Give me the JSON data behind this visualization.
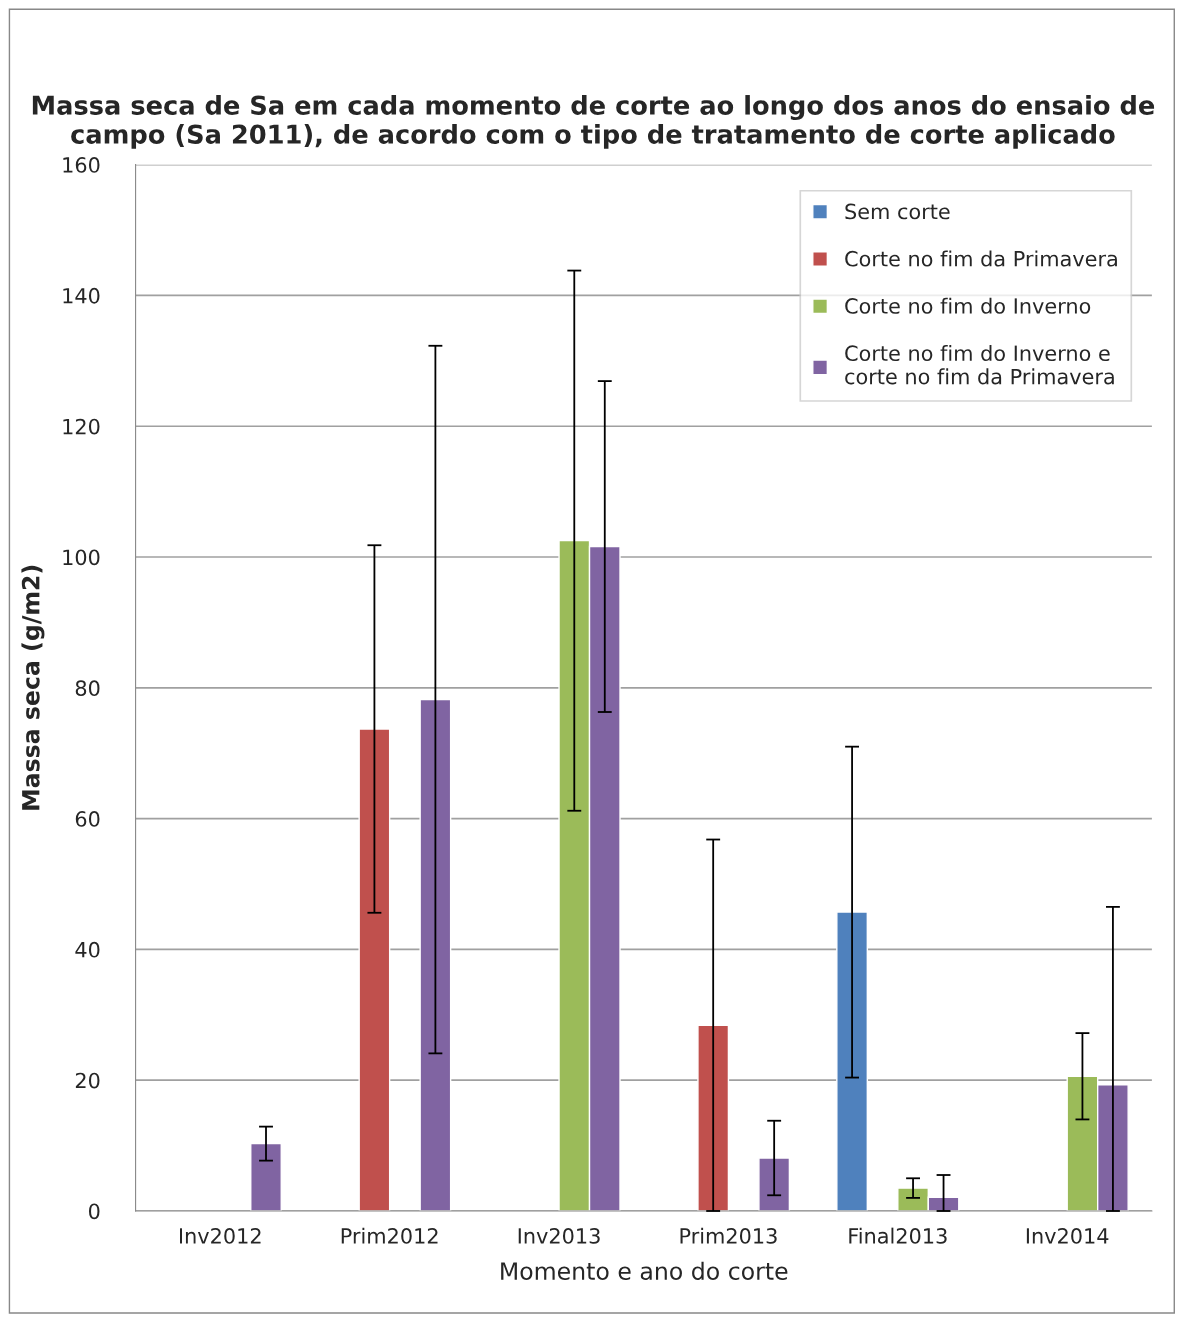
{
  "chart_data": {
    "type": "bar",
    "title": "Massa seca de Sa em cada momento de corte ao longo dos anos do ensaio de campo (Sa 2011), de acordo com o tipo de tratamento de corte aplicado",
    "xlabel": "Momento e ano do corte",
    "ylabel": "Massa seca (g/m2)",
    "categories": [
      "Inv2012",
      "Prim2012",
      "Inv2013",
      "Prim2013",
      "Final2013",
      "Inv2014"
    ],
    "series": [
      {
        "name": "Sem corte",
        "color": "#4f81bd",
        "values": [
          null,
          null,
          null,
          null,
          45.7,
          null
        ],
        "errors": [
          null,
          null,
          null,
          null,
          25.3,
          null
        ]
      },
      {
        "name": "Corte no fim da Primavera",
        "color": "#c0504d",
        "values": [
          null,
          73.7,
          null,
          28.4,
          null,
          null
        ],
        "errors": [
          null,
          28.1,
          null,
          28.4,
          null,
          null
        ]
      },
      {
        "name": "Corte no fim do Inverno",
        "color": "#9bbb59",
        "values": [
          null,
          null,
          102.5,
          null,
          3.5,
          20.6
        ],
        "errors": [
          null,
          null,
          41.3,
          null,
          1.5,
          6.6
        ]
      },
      {
        "name": "Corte no fim do Inverno e\ncorte no fim da Primavera",
        "color": "#8064a2",
        "values": [
          10.3,
          78.2,
          101.6,
          8.1,
          2.1,
          19.3
        ],
        "errors": [
          2.6,
          54.1,
          25.3,
          5.7,
          [
            0,
            5.5
          ],
          [
            0,
            46.5
          ]
        ]
      }
    ],
    "ylim": [
      0,
      160
    ],
    "yticks": [
      0,
      20,
      40,
      60,
      80,
      100,
      120,
      140,
      160
    ],
    "grid": "y",
    "legend": "top right"
  }
}
